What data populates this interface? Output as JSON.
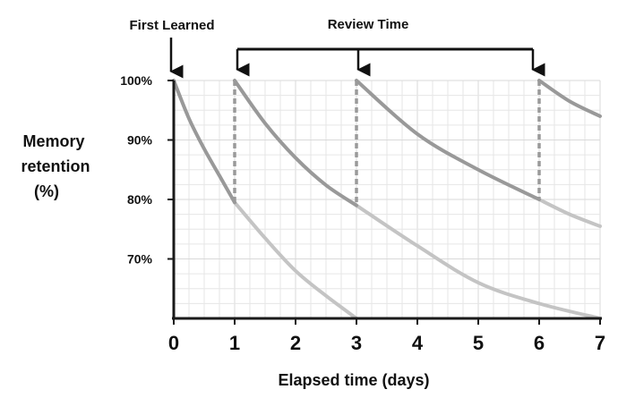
{
  "chart_data": {
    "type": "line",
    "xlabel": "Elapsed time (days)",
    "ylabel": [
      "Memory",
      "retention",
      "(%)"
    ],
    "xlim": [
      0,
      7
    ],
    "ylim": [
      60,
      100
    ],
    "x_ticks": [
      "0",
      "1",
      "2",
      "3",
      "4",
      "5",
      "6",
      "7"
    ],
    "y_ticks": [
      {
        "value": 100,
        "label": "100%"
      },
      {
        "value": 90,
        "label": "90%"
      },
      {
        "value": 80,
        "label": "80%"
      },
      {
        "value": 70,
        "label": "70%"
      }
    ],
    "grid": true,
    "annotations": {
      "first_learned": {
        "label": "First Learned",
        "x": 0
      },
      "review_time": {
        "label": "Review Time",
        "x": [
          1,
          3,
          6
        ]
      }
    },
    "series": [
      {
        "values_before_review": [
          [
            0,
            100
          ],
          [
            0.25,
            93.6
          ],
          [
            0.5,
            88.5
          ],
          [
            0.75,
            84.0
          ],
          [
            1,
            79.5
          ]
        ],
        "values_after_review": [
          [
            1,
            79.5
          ],
          [
            1.5,
            73.5
          ],
          [
            2,
            68.0
          ],
          [
            2.5,
            63.8
          ],
          [
            3,
            60
          ]
        ]
      },
      {
        "values_before_review": [
          [
            1,
            100
          ],
          [
            1.5,
            92.8
          ],
          [
            2,
            87.0
          ],
          [
            2.5,
            82.4
          ],
          [
            3,
            79.0
          ]
        ],
        "values_after_review": [
          [
            3,
            79.0
          ],
          [
            4,
            72.2
          ],
          [
            5,
            66.0
          ],
          [
            6,
            62.5
          ],
          [
            7,
            60
          ]
        ]
      },
      {
        "values_before_review": [
          [
            3,
            100
          ],
          [
            4,
            91.0
          ],
          [
            5,
            85.0
          ],
          [
            6,
            80.0
          ]
        ],
        "values_after_review": [
          [
            6,
            80.0
          ],
          [
            6.5,
            77.5
          ],
          [
            7,
            75.5
          ]
        ]
      },
      {
        "values_before_review": [
          [
            6,
            100
          ],
          [
            6.5,
            96.5
          ],
          [
            7,
            94.0
          ]
        ],
        "values_after_review": []
      }
    ],
    "colors": {
      "retained": "#999999",
      "faded": "#c4c4c4",
      "review_line": "#9a9a9a",
      "grid": "#e6e6e6",
      "axis": "#1a1a1a"
    }
  }
}
